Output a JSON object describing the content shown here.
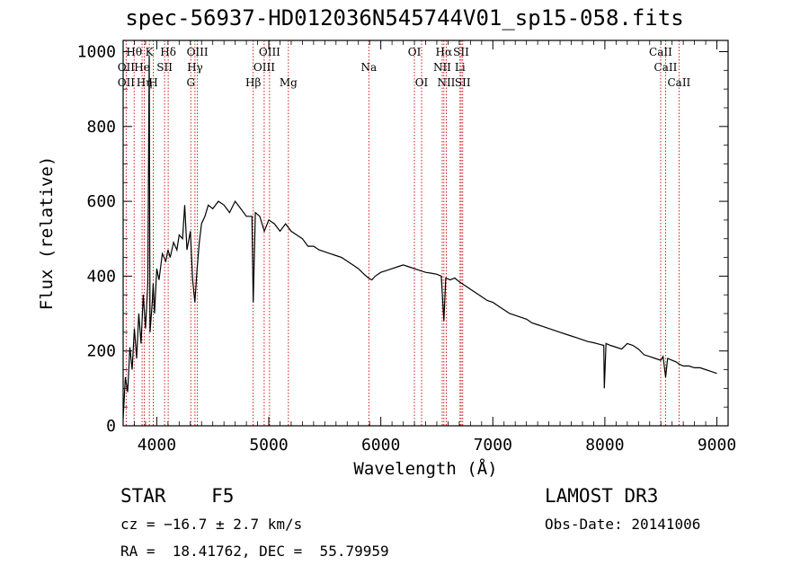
{
  "chart_data": {
    "type": "line",
    "title": "spec-56937-HD012036N545744V01_sp15-058.fits",
    "xlabel": "Wavelength (Å)",
    "ylabel": "Flux (relative)",
    "xlim": [
      3700,
      9100
    ],
    "ylim": [
      0,
      1030
    ],
    "xticks": [
      4000,
      5000,
      6000,
      7000,
      8000,
      9000
    ],
    "yticks": [
      0,
      200,
      400,
      600,
      800,
      1000
    ],
    "line_color": "#cc0000",
    "series": [
      {
        "name": "flux",
        "color": "#000000",
        "x": [
          3700,
          3720,
          3740,
          3760,
          3780,
          3800,
          3820,
          3840,
          3860,
          3880,
          3900,
          3920,
          3933,
          3940,
          3960,
          3968,
          3980,
          4000,
          4020,
          4050,
          4080,
          4100,
          4120,
          4150,
          4180,
          4200,
          4230,
          4250,
          4270,
          4300,
          4320,
          4340,
          4360,
          4380,
          4400,
          4430,
          4460,
          4500,
          4550,
          4600,
          4650,
          4700,
          4750,
          4800,
          4850,
          4861,
          4880,
          4920,
          4960,
          5000,
          5050,
          5100,
          5150,
          5200,
          5250,
          5300,
          5350,
          5400,
          5450,
          5500,
          5550,
          5600,
          5650,
          5700,
          5750,
          5800,
          5850,
          5890,
          5920,
          5950,
          6000,
          6050,
          6100,
          6150,
          6200,
          6250,
          6300,
          6350,
          6400,
          6450,
          6500,
          6540,
          6563,
          6580,
          6620,
          6660,
          6700,
          6750,
          6800,
          6850,
          6900,
          6950,
          7000,
          7050,
          7100,
          7150,
          7200,
          7250,
          7300,
          7350,
          7400,
          7450,
          7500,
          7550,
          7600,
          7650,
          7700,
          7750,
          7800,
          7850,
          7900,
          7950,
          7990,
          7995,
          8010,
          8050,
          8100,
          8150,
          8200,
          8250,
          8300,
          8350,
          8400,
          8450,
          8498,
          8520,
          8542,
          8560,
          8600,
          8640,
          8662,
          8700,
          8750,
          8800,
          8850,
          8900,
          8950,
          9000
        ],
        "y": [
          20,
          130,
          90,
          210,
          150,
          260,
          180,
          300,
          220,
          350,
          260,
          380,
          990,
          250,
          330,
          380,
          300,
          420,
          390,
          460,
          440,
          470,
          450,
          490,
          470,
          510,
          500,
          590,
          470,
          520,
          390,
          330,
          420,
          490,
          540,
          560,
          590,
          580,
          600,
          590,
          570,
          600,
          580,
          560,
          560,
          330,
          570,
          560,
          520,
          550,
          540,
          520,
          540,
          520,
          510,
          500,
          480,
          480,
          470,
          465,
          460,
          455,
          450,
          440,
          430,
          420,
          405,
          395,
          390,
          400,
          410,
          415,
          420,
          425,
          430,
          425,
          420,
          415,
          410,
          408,
          405,
          400,
          280,
          395,
          390,
          395,
          385,
          375,
          365,
          355,
          345,
          335,
          330,
          320,
          310,
          300,
          295,
          290,
          285,
          275,
          270,
          265,
          260,
          255,
          250,
          245,
          240,
          235,
          230,
          225,
          222,
          218,
          215,
          100,
          220,
          215,
          210,
          205,
          220,
          215,
          205,
          190,
          185,
          180,
          175,
          185,
          130,
          180,
          175,
          170,
          165,
          160,
          160,
          155,
          155,
          150,
          145,
          140
        ]
      }
    ],
    "line_markers": [
      {
        "wl": 3798,
        "label": "Hθ",
        "row": 0
      },
      {
        "wl": 3889,
        "label": "Hη",
        "row": 2
      },
      {
        "wl": 3869,
        "label": "He",
        "row": 1
      },
      {
        "wl": 3727,
        "label": "OII",
        "row": 1
      },
      {
        "wl": 3727,
        "label": "OII",
        "row": 2
      },
      {
        "wl": 3934,
        "label": "K",
        "row": 0
      },
      {
        "wl": 3969,
        "label": "H",
        "row": 2
      },
      {
        "wl": 4070,
        "label": "SII",
        "row": 1
      },
      {
        "wl": 4102,
        "label": "Hδ",
        "row": 0
      },
      {
        "wl": 4304,
        "label": "G",
        "row": 2
      },
      {
        "wl": 4341,
        "label": "Hγ",
        "row": 1
      },
      {
        "wl": 4363,
        "label": "OIII",
        "row": 0
      },
      {
        "wl": 4861,
        "label": "Hβ",
        "row": 2
      },
      {
        "wl": 4959,
        "label": "OIII",
        "row": 1
      },
      {
        "wl": 5007,
        "label": "OIII",
        "row": 0
      },
      {
        "wl": 5175,
        "label": "Mg",
        "row": 2
      },
      {
        "wl": 5893,
        "label": "Na",
        "row": 1
      },
      {
        "wl": 6300,
        "label": "OI",
        "row": 0
      },
      {
        "wl": 6364,
        "label": "OI",
        "row": 2
      },
      {
        "wl": 6548,
        "label": "NII",
        "row": 1
      },
      {
        "wl": 6563,
        "label": "Hα",
        "row": 0
      },
      {
        "wl": 6584,
        "label": "NII",
        "row": 2
      },
      {
        "wl": 6707,
        "label": "Li",
        "row": 1
      },
      {
        "wl": 6717,
        "label": "SII",
        "row": 0
      },
      {
        "wl": 6731,
        "label": "SII",
        "row": 2
      },
      {
        "wl": 8498,
        "label": "CaII",
        "row": 0
      },
      {
        "wl": 8542,
        "label": "CaII",
        "row": 1
      },
      {
        "wl": 8662,
        "label": "CaII",
        "row": 2
      }
    ]
  },
  "info": {
    "class": "STAR    F5",
    "survey": "LAMOST DR3",
    "cz": "cz = −16.7 ± 2.7 km/s",
    "obs_date": "Obs-Date: 20141006",
    "radec": "RA =  18.41762, DEC =  55.79959"
  }
}
